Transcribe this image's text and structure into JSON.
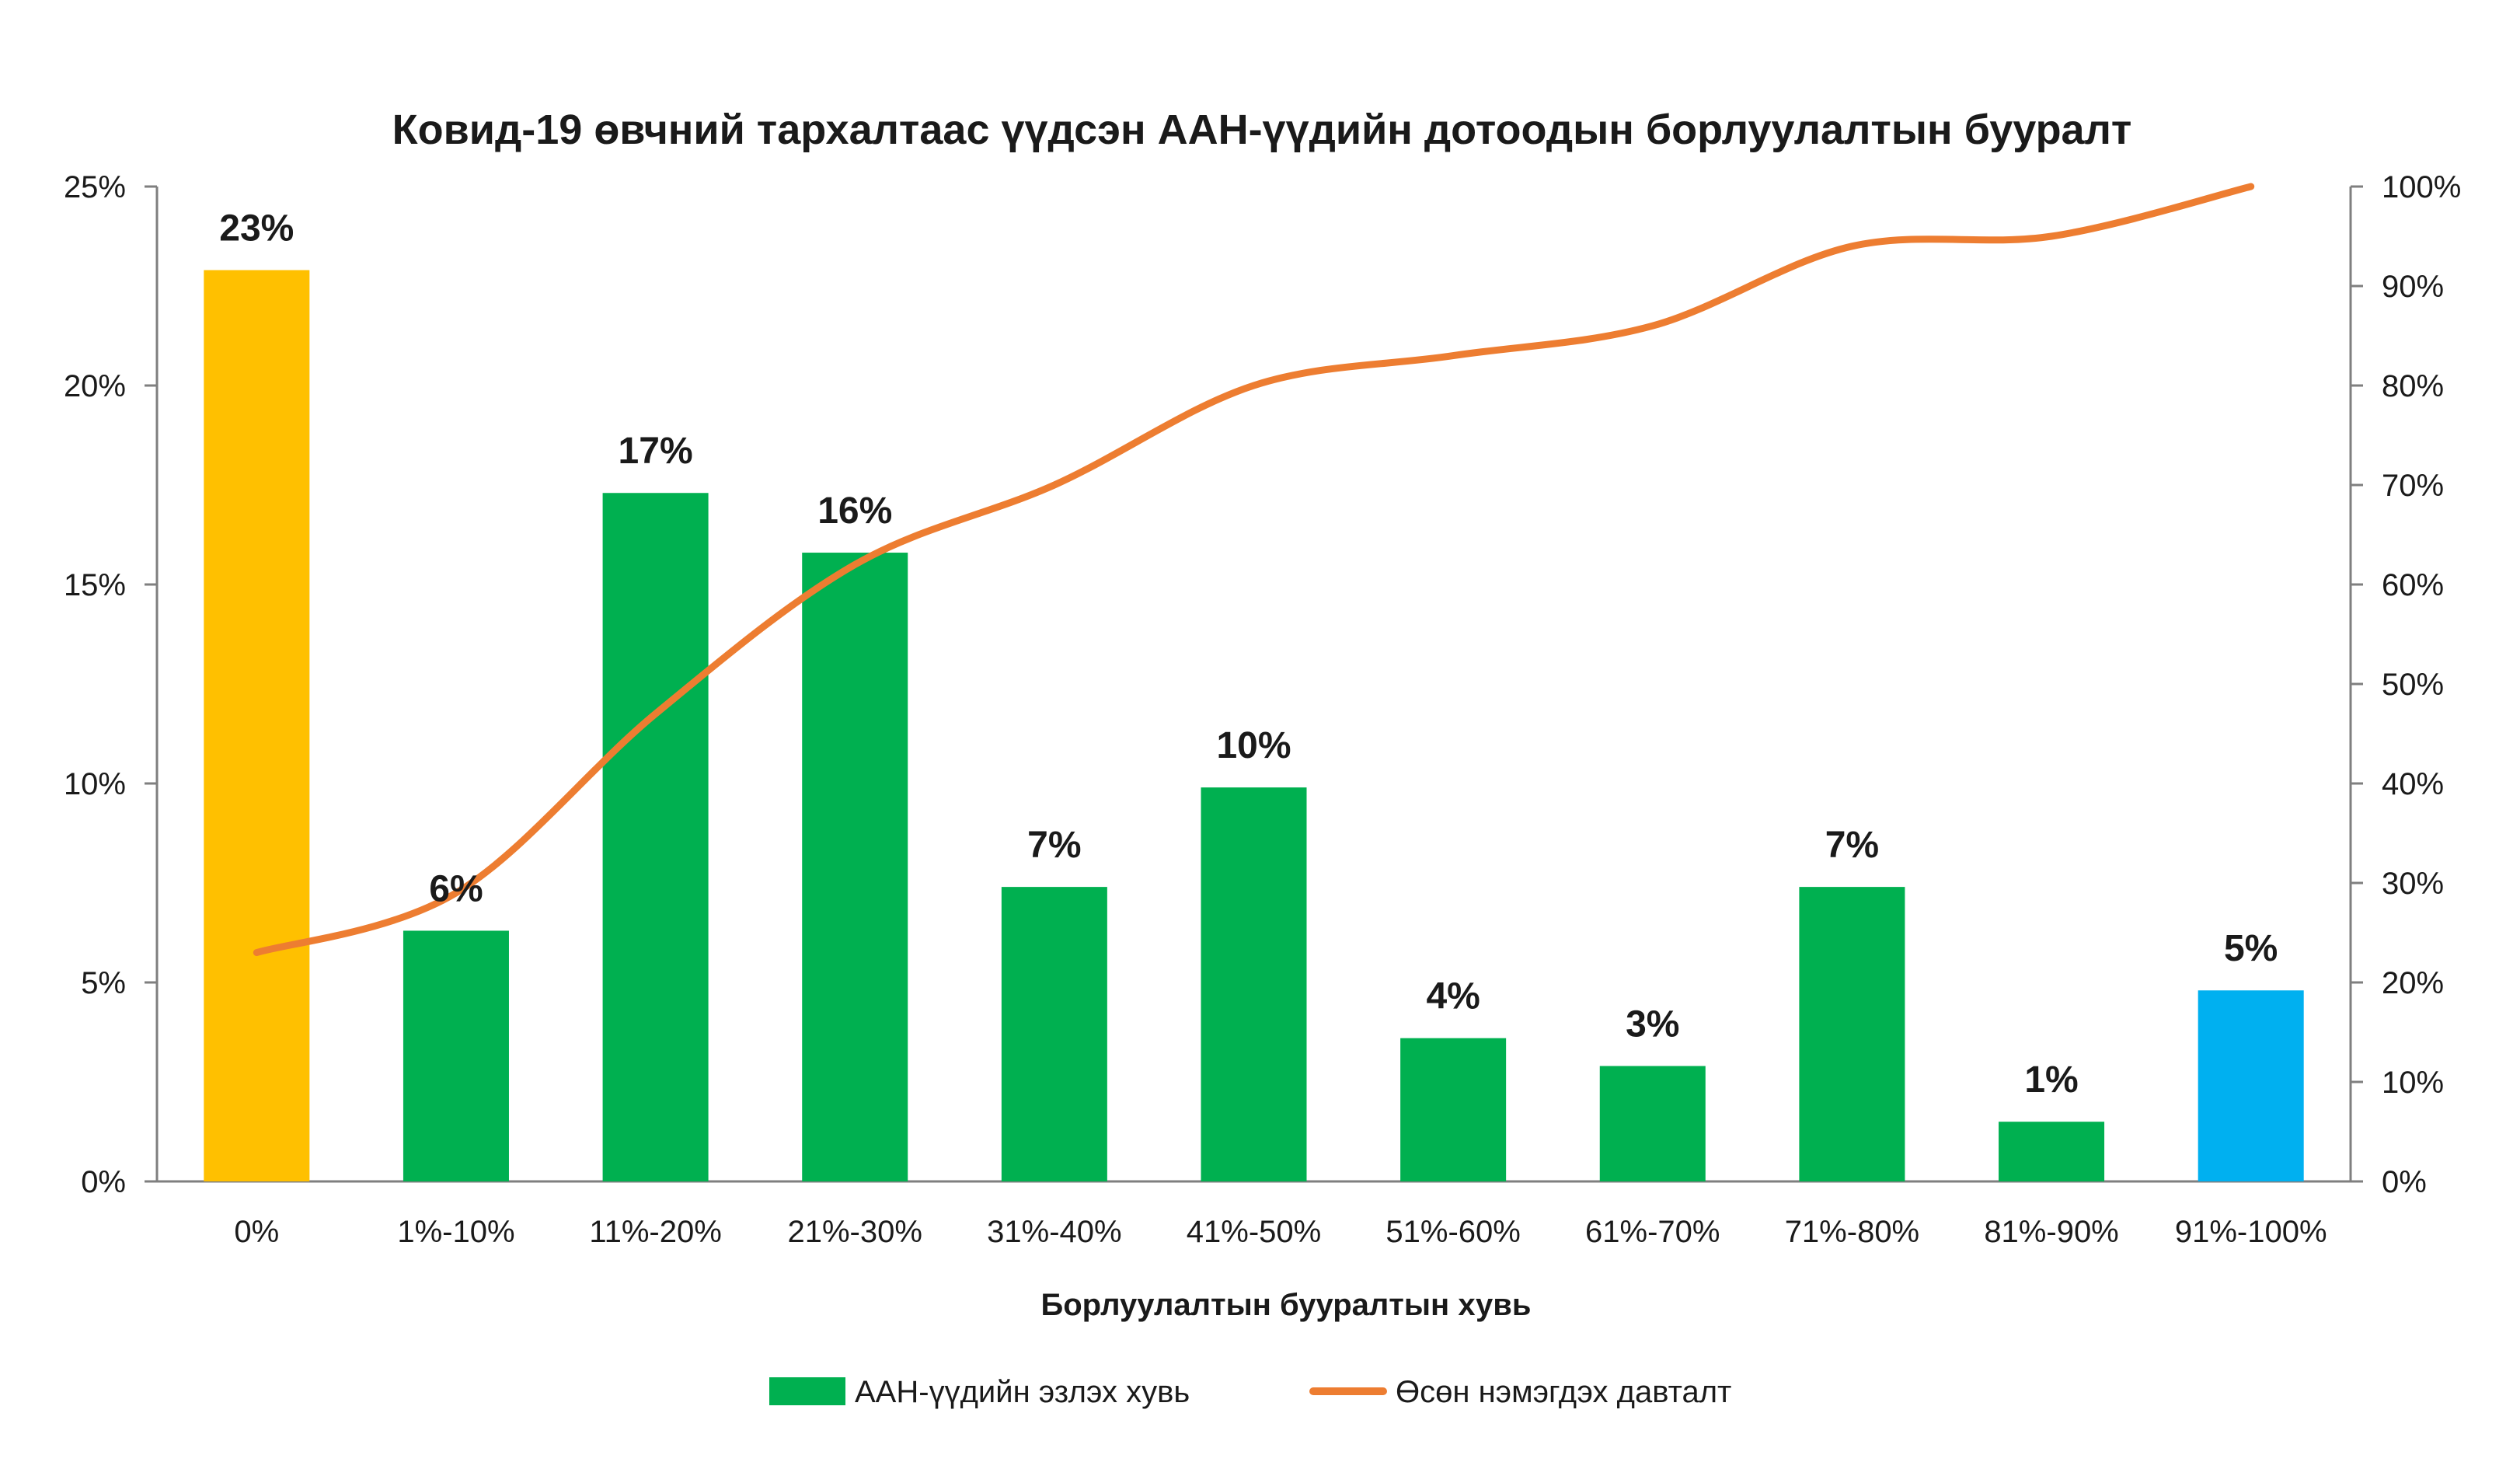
{
  "chart_data": {
    "type": "bar",
    "title": "Ковид-19 өвчний тархалтаас үүдсэн ААН-үүдийн дотоодын борлуулалтын бууралт",
    "xlabel": "Борлуулалтын бууралтын хувь",
    "ylabel": "",
    "categories": [
      "0%",
      "1%-10%",
      "11%-20%",
      "21%-30%",
      "31%-40%",
      "41%-50%",
      "51%-60%",
      "61%-70%",
      "71%-80%",
      "81%-90%",
      "91%-100%"
    ],
    "series": [
      {
        "name": "ААН-үүдийн эзлэх хувь",
        "type": "bar",
        "axis": "left",
        "values": [
          22.9,
          6.3,
          17.3,
          15.8,
          7.4,
          9.9,
          3.6,
          2.9,
          7.4,
          1.5,
          4.8
        ],
        "data_labels": [
          "23%",
          "6%",
          "17%",
          "16%",
          "7%",
          "10%",
          "4%",
          "3%",
          "7%",
          "1%",
          "5%"
        ],
        "colors": [
          "#FFC000",
          "#00B050",
          "#00B050",
          "#00B050",
          "#00B050",
          "#00B050",
          "#00B050",
          "#00B050",
          "#00B050",
          "#00B050",
          "#00B0F0"
        ]
      },
      {
        "name": "Өсөн нэмэгдэх давталт",
        "type": "line",
        "axis": "right",
        "color": "#ED7D31",
        "values": [
          23,
          29,
          47,
          62,
          70,
          80,
          83,
          86,
          94,
          95,
          100
        ]
      }
    ],
    "ylim_left": [
      0,
      25
    ],
    "yticks_left": [
      "0%",
      "5%",
      "10%",
      "15%",
      "20%",
      "25%"
    ],
    "ylim_right": [
      0,
      100
    ],
    "yticks_right": [
      "0%",
      "10%",
      "20%",
      "30%",
      "40%",
      "50%",
      "60%",
      "70%",
      "80%",
      "90%",
      "100%"
    ],
    "grid": false,
    "legend_position": "bottom"
  }
}
